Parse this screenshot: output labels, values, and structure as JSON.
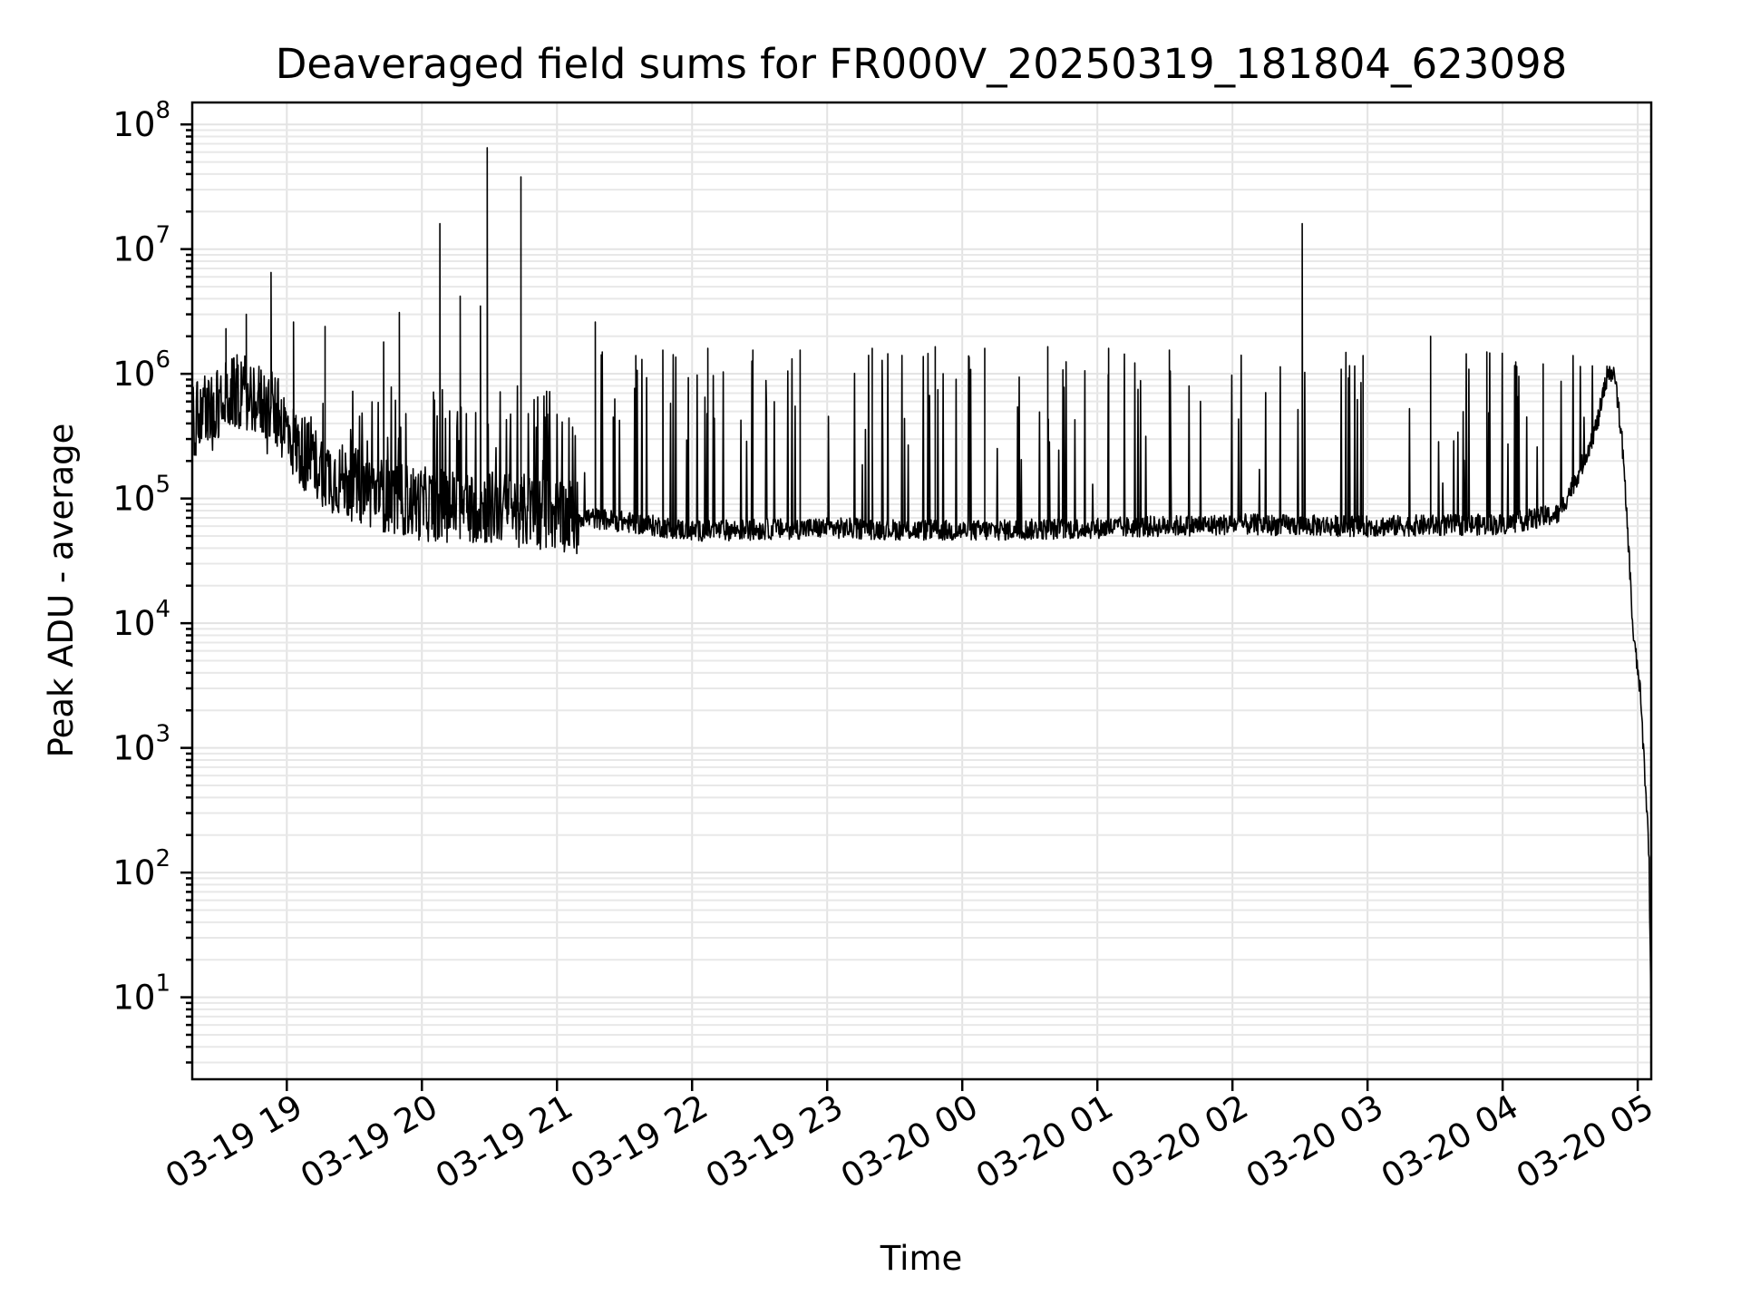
{
  "chart_data": {
    "type": "line",
    "title": "Deaveraged field sums for FR000V_20250319_181804_623098",
    "xlabel": "Time",
    "ylabel": "Peak ADU - average",
    "yscale": "log",
    "ylim": [
      2.2,
      150000000
    ],
    "xlim": [
      "2025-03-19 18:18",
      "2025-03-20 05:06"
    ],
    "grid": true,
    "legend": "none",
    "line_color": "#000000",
    "x_ticks": [
      {
        "label": "03-19 19",
        "time": "2025-03-19 19:00"
      },
      {
        "label": "03-19 20",
        "time": "2025-03-19 20:00"
      },
      {
        "label": "03-19 21",
        "time": "2025-03-19 21:00"
      },
      {
        "label": "03-19 22",
        "time": "2025-03-19 22:00"
      },
      {
        "label": "03-19 23",
        "time": "2025-03-19 23:00"
      },
      {
        "label": "03-20 00",
        "time": "2025-03-20 00:00"
      },
      {
        "label": "03-20 01",
        "time": "2025-03-20 01:00"
      },
      {
        "label": "03-20 02",
        "time": "2025-03-20 02:00"
      },
      {
        "label": "03-20 03",
        "time": "2025-03-20 03:00"
      },
      {
        "label": "03-20 04",
        "time": "2025-03-20 04:00"
      },
      {
        "label": "03-20 05",
        "time": "2025-03-20 05:00"
      }
    ],
    "y_ticks": [
      {
        "base": "10",
        "exp": "1",
        "value": 10
      },
      {
        "base": "10",
        "exp": "2",
        "value": 100
      },
      {
        "base": "10",
        "exp": "3",
        "value": 1000
      },
      {
        "base": "10",
        "exp": "4",
        "value": 10000
      },
      {
        "base": "10",
        "exp": "5",
        "value": 100000
      },
      {
        "base": "10",
        "exp": "6",
        "value": 1000000
      },
      {
        "base": "10",
        "exp": "7",
        "value": 10000000
      },
      {
        "base": "10",
        "exp": "8",
        "value": 100000000
      }
    ],
    "series": [
      {
        "baseline": [
          {
            "time": "2025-03-19 18:18",
            "value": 400000
          },
          {
            "time": "2025-03-19 18:30",
            "value": 600000
          },
          {
            "time": "2025-03-19 18:40",
            "value": 750000
          },
          {
            "time": "2025-03-19 18:55",
            "value": 500000
          },
          {
            "time": "2025-03-19 19:05",
            "value": 250000
          },
          {
            "time": "2025-03-19 19:20",
            "value": 150000
          },
          {
            "time": "2025-03-19 19:40",
            "value": 110000
          },
          {
            "time": "2025-03-19 20:00",
            "value": 90000
          },
          {
            "time": "2025-03-19 20:30",
            "value": 85000
          },
          {
            "time": "2025-03-19 21:00",
            "value": 75000
          },
          {
            "time": "2025-03-19 21:30",
            "value": 65000
          },
          {
            "time": "2025-03-19 22:00",
            "value": 55000
          },
          {
            "time": "2025-03-19 23:00",
            "value": 58000
          },
          {
            "time": "2025-03-20 00:00",
            "value": 55000
          },
          {
            "time": "2025-03-20 01:00",
            "value": 58000
          },
          {
            "time": "2025-03-20 02:00",
            "value": 62000
          },
          {
            "time": "2025-03-20 03:00",
            "value": 60000
          },
          {
            "time": "2025-03-20 04:00",
            "value": 62000
          },
          {
            "time": "2025-03-20 04:25",
            "value": 75000
          },
          {
            "time": "2025-03-20 04:35",
            "value": 180000
          },
          {
            "time": "2025-03-20 04:42",
            "value": 400000
          },
          {
            "time": "2025-03-20 04:47",
            "value": 1100000
          },
          {
            "time": "2025-03-20 04:50",
            "value": 900000
          },
          {
            "time": "2025-03-20 04:53",
            "value": 300000
          },
          {
            "time": "2025-03-20 04:56",
            "value": 40000
          },
          {
            "time": "2025-03-20 04:58",
            "value": 8000
          },
          {
            "time": "2025-03-20 05:01",
            "value": 3000
          },
          {
            "time": "2025-03-20 05:03",
            "value": 700
          },
          {
            "time": "2025-03-20 05:05",
            "value": 150
          },
          {
            "time": "2025-03-20 05:06",
            "value": 5
          }
        ],
        "spikes": [
          {
            "time": "2025-03-19 18:33",
            "value": 2300000
          },
          {
            "time": "2025-03-19 18:42",
            "value": 3000000
          },
          {
            "time": "2025-03-19 18:53",
            "value": 6500000
          },
          {
            "time": "2025-03-19 19:03",
            "value": 2600000
          },
          {
            "time": "2025-03-19 19:17",
            "value": 2400000
          },
          {
            "time": "2025-03-19 19:43",
            "value": 1800000
          },
          {
            "time": "2025-03-19 19:50",
            "value": 3100000
          },
          {
            "time": "2025-03-19 20:08",
            "value": 16000000
          },
          {
            "time": "2025-03-19 20:17",
            "value": 4200000
          },
          {
            "time": "2025-03-19 20:26",
            "value": 3500000
          },
          {
            "time": "2025-03-19 20:29",
            "value": 65000000
          },
          {
            "time": "2025-03-19 20:44",
            "value": 38000000
          },
          {
            "time": "2025-03-19 21:17",
            "value": 2600000
          },
          {
            "time": "2025-03-19 21:25",
            "value": 450000
          },
          {
            "time": "2025-03-19 21:35",
            "value": 1400000
          },
          {
            "time": "2025-03-19 21:47",
            "value": 1550000
          },
          {
            "time": "2025-03-19 22:07",
            "value": 1600000
          },
          {
            "time": "2025-03-19 22:27",
            "value": 1550000
          },
          {
            "time": "2025-03-19 22:48",
            "value": 1550000
          },
          {
            "time": "2025-03-19 23:20",
            "value": 1600000
          },
          {
            "time": "2025-03-19 23:48",
            "value": 1650000
          },
          {
            "time": "2025-03-20 00:10",
            "value": 1600000
          },
          {
            "time": "2025-03-20 00:38",
            "value": 1650000
          },
          {
            "time": "2025-03-20 01:05",
            "value": 1600000
          },
          {
            "time": "2025-03-20 01:32",
            "value": 1550000
          },
          {
            "time": "2025-03-20 02:31",
            "value": 16000000
          },
          {
            "time": "2025-03-20 02:58",
            "value": 1400000
          },
          {
            "time": "2025-03-20 03:28",
            "value": 2000000
          },
          {
            "time": "2025-03-20 03:53",
            "value": 1500000
          },
          {
            "time": "2025-03-20 04:18",
            "value": 1200000
          }
        ]
      }
    ]
  }
}
